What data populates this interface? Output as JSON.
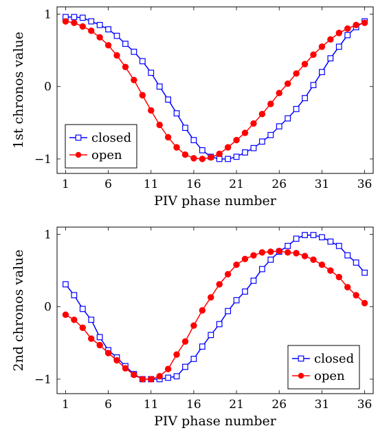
{
  "chart_data": [
    {
      "type": "line",
      "xlabel": "PIV phase number",
      "ylabel": "1st chronos value",
      "xlim": [
        0,
        37
      ],
      "ylim": [
        -1.2,
        1.1
      ],
      "xticks": [
        1,
        6,
        11,
        16,
        21,
        26,
        31,
        36
      ],
      "yticks": [
        -1,
        0,
        1
      ],
      "legend": "bottom-left",
      "series": [
        {
          "name": "closed",
          "color": "#0000ff",
          "marker": "square",
          "x": [
            1,
            2,
            3,
            4,
            5,
            6,
            7,
            8,
            9,
            10,
            11,
            12,
            13,
            14,
            15,
            16,
            17,
            18,
            19,
            20,
            21,
            22,
            23,
            24,
            25,
            26,
            27,
            28,
            29,
            30,
            31,
            32,
            33,
            34,
            35,
            36
          ],
          "values": [
            0.96,
            0.96,
            0.95,
            0.9,
            0.85,
            0.79,
            0.7,
            0.59,
            0.48,
            0.35,
            0.19,
            0.0,
            -0.18,
            -0.37,
            -0.57,
            -0.74,
            -0.88,
            -0.97,
            -1.0,
            -1.0,
            -0.97,
            -0.91,
            -0.85,
            -0.76,
            -0.67,
            -0.55,
            -0.44,
            -0.31,
            -0.16,
            0.02,
            0.2,
            0.39,
            0.55,
            0.71,
            0.82,
            0.9
          ]
        },
        {
          "name": "open",
          "color": "#ff0000",
          "marker": "circle",
          "x": [
            1,
            2,
            3,
            4,
            5,
            6,
            7,
            8,
            9,
            10,
            11,
            12,
            13,
            14,
            15,
            16,
            17,
            18,
            19,
            20,
            21,
            22,
            23,
            24,
            25,
            26,
            27,
            28,
            29,
            30,
            31,
            32,
            33,
            34,
            35,
            36
          ],
          "values": [
            0.9,
            0.88,
            0.83,
            0.77,
            0.68,
            0.57,
            0.43,
            0.27,
            0.09,
            -0.12,
            -0.33,
            -0.53,
            -0.7,
            -0.84,
            -0.94,
            -0.99,
            -1.0,
            -0.98,
            -0.93,
            -0.84,
            -0.74,
            -0.64,
            -0.51,
            -0.38,
            -0.24,
            -0.09,
            0.04,
            0.18,
            0.31,
            0.44,
            0.55,
            0.65,
            0.74,
            0.8,
            0.85,
            0.88
          ]
        }
      ]
    },
    {
      "type": "line",
      "xlabel": "PIV phase number",
      "ylabel": "2nd chronos value",
      "xlim": [
        0,
        37
      ],
      "ylim": [
        -1.2,
        1.1
      ],
      "xticks": [
        1,
        6,
        11,
        16,
        21,
        26,
        31,
        36
      ],
      "yticks": [
        -1,
        0,
        1
      ],
      "legend": "bottom-right",
      "series": [
        {
          "name": "closed",
          "color": "#0000ff",
          "marker": "square",
          "x": [
            1,
            2,
            3,
            4,
            5,
            6,
            7,
            8,
            9,
            10,
            11,
            12,
            13,
            14,
            15,
            16,
            17,
            18,
            19,
            20,
            21,
            22,
            23,
            24,
            25,
            26,
            27,
            28,
            29,
            30,
            31,
            32,
            33,
            34,
            35,
            36
          ],
          "values": [
            0.31,
            0.16,
            -0.03,
            -0.18,
            -0.42,
            -0.6,
            -0.7,
            -0.82,
            -0.93,
            -1.0,
            -1.0,
            -1.0,
            -0.98,
            -0.96,
            -0.83,
            -0.72,
            -0.55,
            -0.39,
            -0.24,
            -0.06,
            0.09,
            0.21,
            0.36,
            0.52,
            0.65,
            0.76,
            0.84,
            0.94,
            0.99,
            0.99,
            0.96,
            0.9,
            0.84,
            0.71,
            0.61,
            0.47
          ]
        },
        {
          "name": "open",
          "color": "#ff0000",
          "marker": "circle",
          "x": [
            1,
            2,
            3,
            4,
            5,
            6,
            7,
            8,
            9,
            10,
            11,
            12,
            13,
            14,
            15,
            16,
            17,
            18,
            19,
            20,
            21,
            22,
            23,
            24,
            25,
            26,
            27,
            28,
            29,
            30,
            31,
            32,
            33,
            34,
            35,
            36
          ],
          "values": [
            -0.11,
            -0.18,
            -0.29,
            -0.44,
            -0.53,
            -0.64,
            -0.74,
            -0.85,
            -0.94,
            -1.0,
            -1.0,
            -0.96,
            -0.86,
            -0.66,
            -0.48,
            -0.26,
            -0.05,
            0.13,
            0.31,
            0.45,
            0.58,
            0.66,
            0.71,
            0.75,
            0.76,
            0.77,
            0.75,
            0.74,
            0.7,
            0.65,
            0.58,
            0.5,
            0.41,
            0.27,
            0.16,
            0.05
          ]
        }
      ]
    }
  ]
}
